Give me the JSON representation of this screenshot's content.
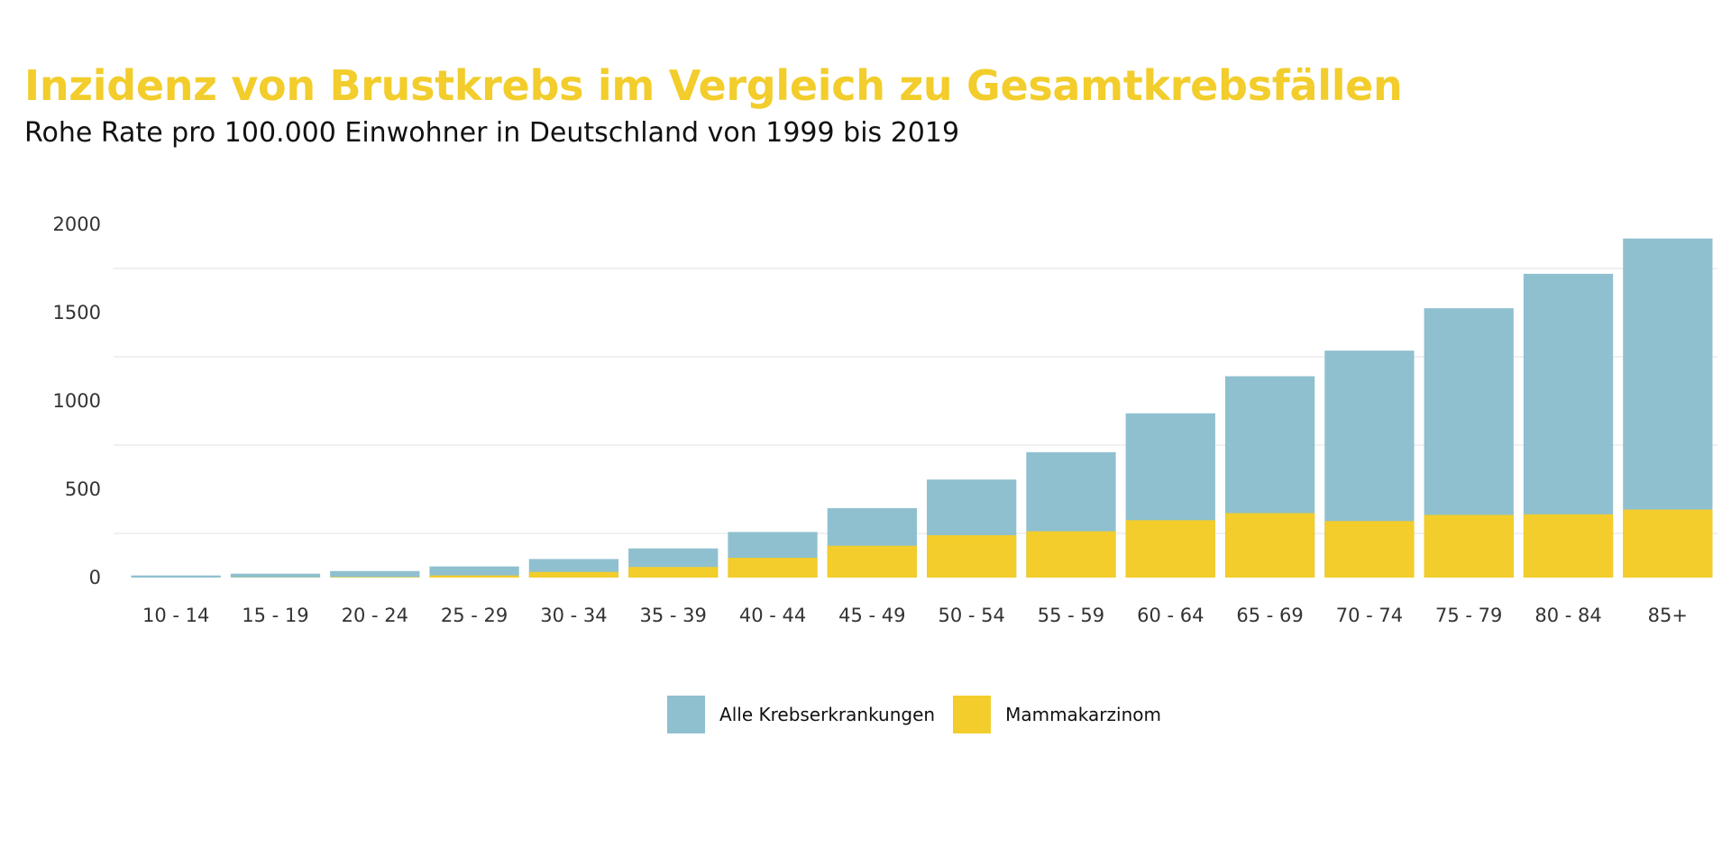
{
  "chart_data": {
    "type": "bar",
    "stacked": false,
    "overlapping": true,
    "title": "Inzidenz von Brustkrebs im Vergleich zu Gesamtkrebsfällen",
    "subtitle": "Rohe Rate pro 100.000 Einwohner in Deutschland von 1999 bis 2019",
    "xlabel": "",
    "ylabel": "",
    "ylim": [
      0,
      2000
    ],
    "yticks": [
      0,
      500,
      1000,
      1500,
      2000
    ],
    "grid": true,
    "legend_position": "bottom",
    "categories": [
      "10 - 14",
      "15 - 19",
      "20 - 24",
      "25 - 29",
      "30 - 34",
      "35 - 39",
      "40 - 44",
      "45 - 49",
      "50 - 54",
      "55 - 59",
      "60 - 64",
      "65 - 69",
      "70 - 74",
      "75 - 79",
      "80 - 84",
      "85+"
    ],
    "series": [
      {
        "name": "Alle Krebserkrankungen",
        "color": "#8fc0cf",
        "values": [
          12,
          22,
          37,
          63,
          105,
          165,
          258,
          393,
          555,
          710,
          930,
          1140,
          1285,
          1525,
          1720,
          1920
        ]
      },
      {
        "name": "Mammakarzinom",
        "color": "#f2cd2b",
        "values": [
          0,
          1,
          3,
          12,
          32,
          60,
          112,
          180,
          240,
          262,
          325,
          365,
          320,
          355,
          358,
          385
        ]
      }
    ]
  }
}
